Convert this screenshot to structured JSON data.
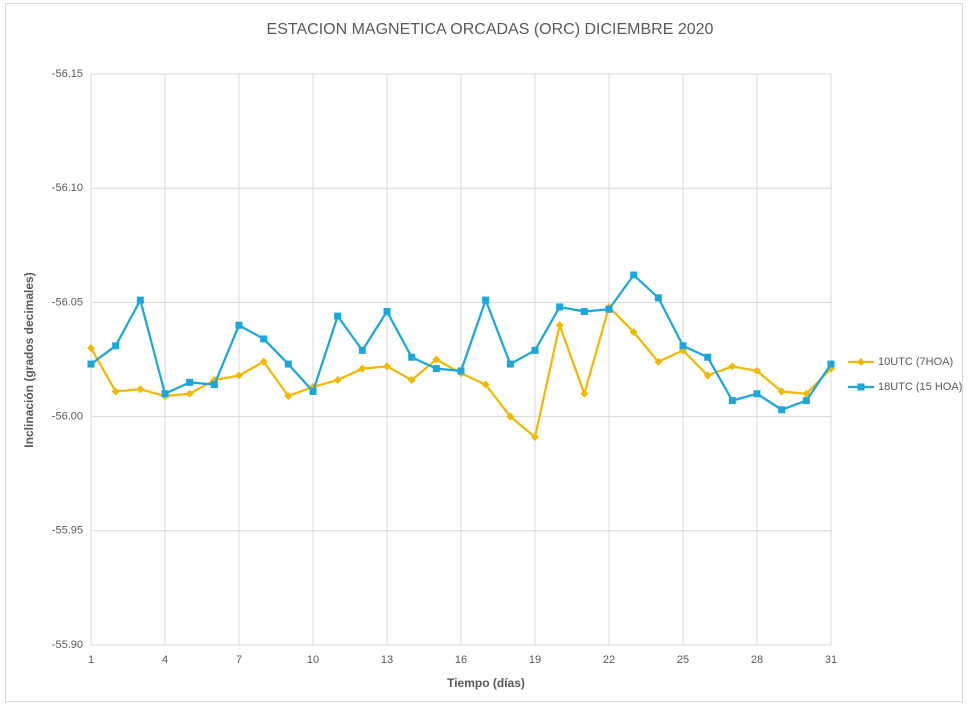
{
  "chart_data": {
    "type": "line",
    "title": "ESTACION MAGNETICA ORCADAS (ORC) DICIEMBRE 2020",
    "x_label": "Tiempo (días)",
    "y_label": "Inclinación (grados decimales)",
    "x": [
      1,
      2,
      3,
      4,
      5,
      6,
      7,
      8,
      9,
      10,
      11,
      12,
      13,
      14,
      15,
      16,
      17,
      18,
      19,
      20,
      21,
      22,
      23,
      24,
      25,
      26,
      27,
      28,
      29,
      30,
      31
    ],
    "xlim": [
      1,
      31
    ],
    "xticks": [
      1,
      4,
      7,
      10,
      13,
      16,
      19,
      22,
      25,
      28,
      31
    ],
    "ylim": [
      -55.9,
      -56.15
    ],
    "yticks": [
      {
        "value": -55.9,
        "label": "-55.90"
      },
      -55.95,
      {
        "value": -56,
        "label": "-56.00"
      },
      -56.05,
      {
        "value": -56.1,
        "label": "-56.10"
      },
      -56.15
    ],
    "grid": true,
    "legend": "right",
    "series": [
      {
        "name": "10UTC (7HOA)",
        "color": "#f5b800",
        "marker": "diamond",
        "values": [
          -56.03,
          -56.011,
          -56.012,
          -56.009,
          -56.01,
          -56.016,
          -56.018,
          -56.024,
          -56.009,
          -56.013,
          -56.016,
          -56.021,
          -56.022,
          -56.016,
          -56.025,
          -56.019,
          -56.014,
          -56.0,
          -55.991,
          -56.04,
          -56.01,
          -56.048,
          -56.037,
          -56.024,
          -56.029,
          -56.018,
          -56.022,
          -56.02,
          -56.011,
          -56.01,
          -56.021
        ]
      },
      {
        "name": "18UTC (15 HOA)",
        "color": "#1aa7de",
        "marker": "square",
        "values": [
          -56.023,
          -56.031,
          -56.051,
          -56.01,
          -56.015,
          -56.014,
          -56.04,
          -56.034,
          -56.023,
          -56.011,
          -56.044,
          -56.029,
          -56.046,
          -56.026,
          -56.021,
          -56.02,
          -56.051,
          -56.023,
          -56.029,
          -56.048,
          -56.046,
          -56.047,
          -56.062,
          -56.052,
          -56.031,
          -56.026,
          -56.007,
          -56.01,
          -56.003,
          -56.007,
          -56.023
        ]
      }
    ]
  }
}
